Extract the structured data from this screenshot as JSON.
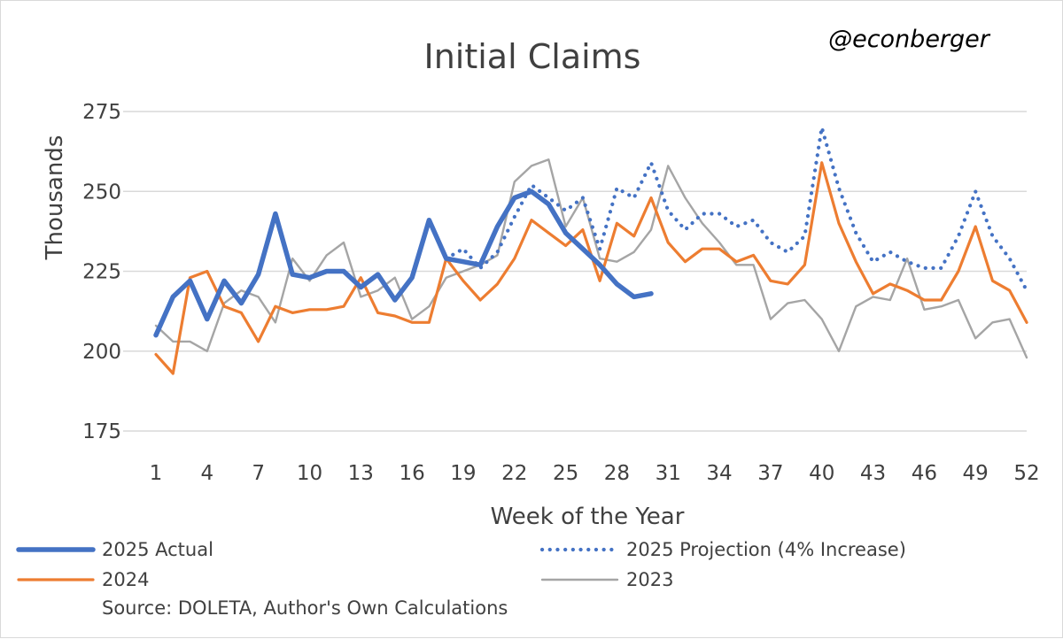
{
  "header": {
    "handle": "@econberger"
  },
  "source": "Source: DOLETA, Author's Own Calculations",
  "chart_data": {
    "type": "line",
    "title": "Initial Claims",
    "xlabel": "Week of the Year",
    "ylabel": "Thousands",
    "xlim": [
      1,
      52
    ],
    "ylim": [
      175,
      275
    ],
    "x_ticks": [
      1,
      4,
      7,
      10,
      13,
      16,
      19,
      22,
      25,
      28,
      31,
      34,
      37,
      40,
      43,
      46,
      49,
      52
    ],
    "y_ticks": [
      175,
      200,
      225,
      250,
      275
    ],
    "grid": "horizontal",
    "legend_position": "bottom",
    "series": [
      {
        "name": "2025 Actual",
        "color": "#4472c4",
        "style": "solid-thick",
        "x": [
          1,
          2,
          3,
          4,
          5,
          6,
          7,
          8,
          9,
          10,
          11,
          12,
          13,
          14,
          15,
          16,
          17,
          18,
          19,
          20,
          21,
          22,
          23,
          24,
          25,
          26,
          27,
          28,
          29,
          30
        ],
        "values": [
          205,
          217,
          222,
          210,
          222,
          215,
          224,
          243,
          224,
          223,
          225,
          225,
          220,
          224,
          216,
          223,
          241,
          229,
          228,
          227,
          239,
          248,
          250,
          246,
          237,
          232,
          227,
          221,
          217,
          218
        ]
      },
      {
        "name": "2025 Projection (4% Increase)",
        "color": "#4472c4",
        "style": "dotted",
        "x": [
          18,
          19,
          20,
          21,
          22,
          23,
          24,
          25,
          26,
          27,
          28,
          29,
          30,
          31,
          32,
          33,
          34,
          35,
          36,
          37,
          38,
          39,
          40,
          41,
          42,
          43,
          44,
          45,
          46,
          47,
          48,
          49,
          50,
          51,
          52
        ],
        "values": [
          229,
          232,
          226,
          231,
          242,
          252,
          248,
          244,
          248,
          232,
          251,
          248,
          259,
          244,
          238,
          243,
          243,
          239,
          241,
          234,
          231,
          236,
          270,
          251,
          237,
          228,
          231,
          228,
          226,
          226,
          236,
          250,
          236,
          229,
          219
        ]
      },
      {
        "name": "2024",
        "color": "#ed7d31",
        "style": "solid",
        "x": [
          1,
          2,
          3,
          4,
          5,
          6,
          7,
          8,
          9,
          10,
          11,
          12,
          13,
          14,
          15,
          16,
          17,
          18,
          19,
          20,
          21,
          22,
          23,
          24,
          25,
          26,
          27,
          28,
          29,
          30,
          31,
          32,
          33,
          34,
          35,
          36,
          37,
          38,
          39,
          40,
          41,
          42,
          43,
          44,
          45,
          46,
          47,
          48,
          49,
          50,
          51,
          52
        ],
        "values": [
          199,
          193,
          223,
          225,
          214,
          212,
          203,
          214,
          212,
          213,
          213,
          214,
          223,
          212,
          211,
          209,
          209,
          229,
          222,
          216,
          221,
          229,
          241,
          237,
          233,
          238,
          222,
          240,
          236,
          248,
          234,
          228,
          232,
          232,
          228,
          230,
          222,
          221,
          227,
          259,
          240,
          228,
          218,
          221,
          219,
          216,
          216,
          225,
          239,
          222,
          219,
          209
        ]
      },
      {
        "name": "2023",
        "color": "#a5a5a5",
        "style": "solid-thin",
        "x": [
          1,
          2,
          3,
          4,
          5,
          6,
          7,
          8,
          9,
          10,
          11,
          12,
          13,
          14,
          15,
          16,
          17,
          18,
          19,
          20,
          21,
          22,
          23,
          24,
          25,
          26,
          27,
          28,
          29,
          30,
          31,
          32,
          33,
          34,
          35,
          36,
          37,
          38,
          39,
          40,
          41,
          42,
          43,
          44,
          45,
          46,
          47,
          48,
          49,
          50,
          51,
          52
        ],
        "values": [
          208,
          203,
          203,
          200,
          215,
          219,
          217,
          209,
          229,
          222,
          230,
          234,
          217,
          219,
          223,
          210,
          214,
          223,
          225,
          227,
          230,
          253,
          258,
          260,
          239,
          248,
          229,
          228,
          231,
          238,
          258,
          248,
          240,
          234,
          227,
          227,
          210,
          215,
          216,
          210,
          200,
          214,
          217,
          216,
          229,
          213,
          214,
          216,
          204,
          209,
          210,
          198
        ]
      }
    ]
  }
}
